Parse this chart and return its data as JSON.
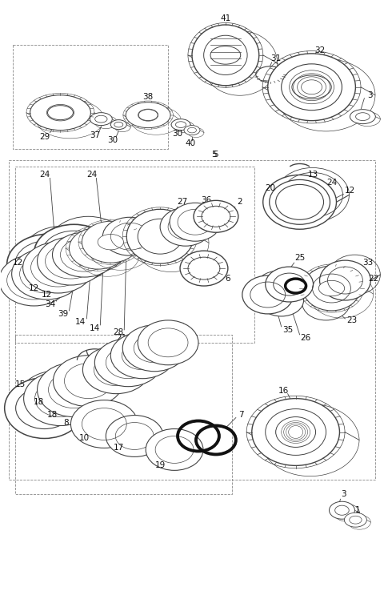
{
  "bg_color": "#ffffff",
  "lc": "#444444",
  "fig_width": 4.8,
  "fig_height": 7.38,
  "dpi": 100
}
